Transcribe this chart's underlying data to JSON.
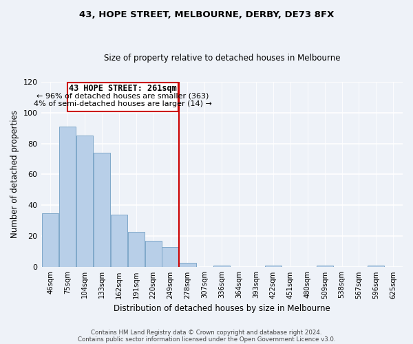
{
  "title": "43, HOPE STREET, MELBOURNE, DERBY, DE73 8FX",
  "subtitle": "Size of property relative to detached houses in Melbourne",
  "xlabel": "Distribution of detached houses by size in Melbourne",
  "ylabel": "Number of detached properties",
  "categories": [
    "46sqm",
    "75sqm",
    "104sqm",
    "133sqm",
    "162sqm",
    "191sqm",
    "220sqm",
    "249sqm",
    "278sqm",
    "307sqm",
    "336sqm",
    "364sqm",
    "393sqm",
    "422sqm",
    "451sqm",
    "480sqm",
    "509sqm",
    "538sqm",
    "567sqm",
    "596sqm",
    "625sqm"
  ],
  "values": [
    35,
    91,
    85,
    74,
    34,
    23,
    17,
    13,
    3,
    0,
    1,
    0,
    0,
    1,
    0,
    0,
    1,
    0,
    0,
    1,
    0
  ],
  "bar_color": "#b8cfe8",
  "bar_edge_color": "#7fa8c9",
  "highlight_line_label": "43 HOPE STREET: 261sqm",
  "annotation_line1": "← 96% of detached houses are smaller (363)",
  "annotation_line2": "4% of semi-detached houses are larger (14) →",
  "annotation_box_color": "#ffffff",
  "annotation_box_edge": "#cc0000",
  "line_color": "#cc0000",
  "ylim": [
    0,
    120
  ],
  "yticks": [
    0,
    20,
    40,
    60,
    80,
    100,
    120
  ],
  "footer1": "Contains HM Land Registry data © Crown copyright and database right 2024.",
  "footer2": "Contains public sector information licensed under the Open Government Licence v3.0.",
  "background_color": "#eef2f8"
}
